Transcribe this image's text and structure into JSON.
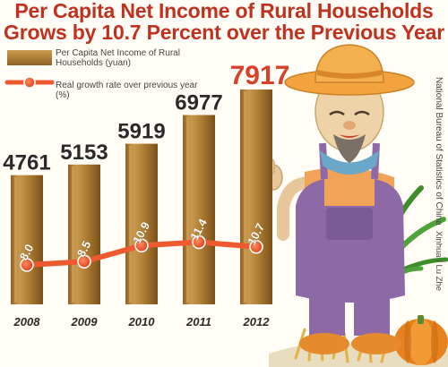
{
  "header": {
    "title_line1": "Per Capita Net Income of Rural Households",
    "title_line2": "Grows  by 10.7 Percent over the Previous Year"
  },
  "legend": {
    "income": "Per Capita Net Income of Rural Households (yuan)",
    "growth": "Real growth rate over previous year (%)"
  },
  "source": "National Bureau of Statistics of China",
  "credit": "Xinhua / Lu Zhe",
  "chart_data": {
    "type": "bar",
    "categories": [
      "2008",
      "2009",
      "2010",
      "2011",
      "2012"
    ],
    "series": [
      {
        "name": "Per Capita Net Income of Rural Households (yuan)",
        "type": "bar",
        "values": [
          4761,
          5153,
          5919,
          6977,
          7917
        ],
        "labels": [
          "4761",
          "5153",
          "5919",
          "6977",
          "7917"
        ]
      },
      {
        "name": "Real growth rate over previous year (%)",
        "type": "line",
        "values": [
          8.0,
          8.5,
          10.9,
          11.4,
          10.7
        ],
        "labels": [
          "8.0",
          "8.5",
          "10.9",
          "11.4",
          "10.7"
        ]
      }
    ]
  },
  "colors": {
    "title": "#c0311f",
    "bar_gold": "#b8853a",
    "line_orange": "#ee5a30",
    "value_dark": "#2a2a2a",
    "value_last": "#d8402a"
  }
}
